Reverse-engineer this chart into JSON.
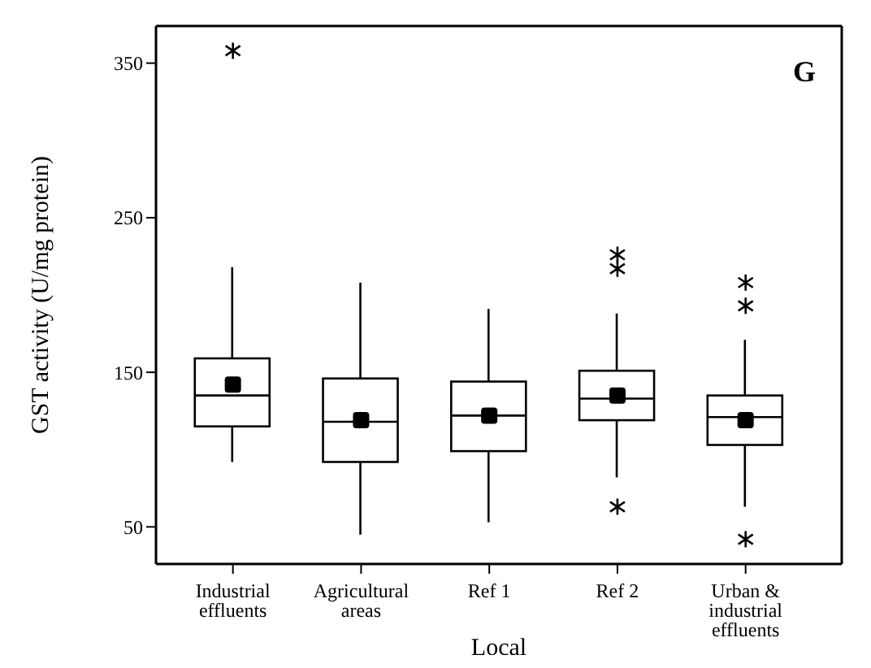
{
  "chart_data": {
    "type": "box",
    "xlabel": "Local",
    "ylabel": "GST activity (U/mg protein)",
    "annotations": [
      "G"
    ],
    "categories": [
      "Industrial effluents",
      "Agricultural areas",
      "Ref 1",
      "Ref 2",
      "Urban & industrial effluents"
    ],
    "color": "#000000",
    "marker": "square",
    "ylim": [
      26,
      374
    ],
    "yticks": [
      50,
      150,
      250,
      350
    ],
    "boxes": [
      {
        "low": 92,
        "q1": 115,
        "median": 135,
        "q3": 159,
        "high": 218,
        "mean": 142,
        "outliers": [
          358
        ]
      },
      {
        "low": 45,
        "q1": 92,
        "median": 118,
        "q3": 146,
        "high": 208,
        "mean": 119
      },
      {
        "low": 53,
        "q1": 99,
        "median": 122,
        "q3": 144,
        "high": 191,
        "mean": 122
      },
      {
        "low": 82,
        "q1": 119,
        "median": 133,
        "q3": 151,
        "high": 188,
        "mean": 135,
        "outliers": [
          226,
          217,
          63
        ]
      },
      {
        "low": 63,
        "q1": 103,
        "median": 121,
        "q3": 135,
        "high": 171,
        "mean": 119,
        "outliers": [
          208,
          193,
          42
        ]
      }
    ]
  }
}
